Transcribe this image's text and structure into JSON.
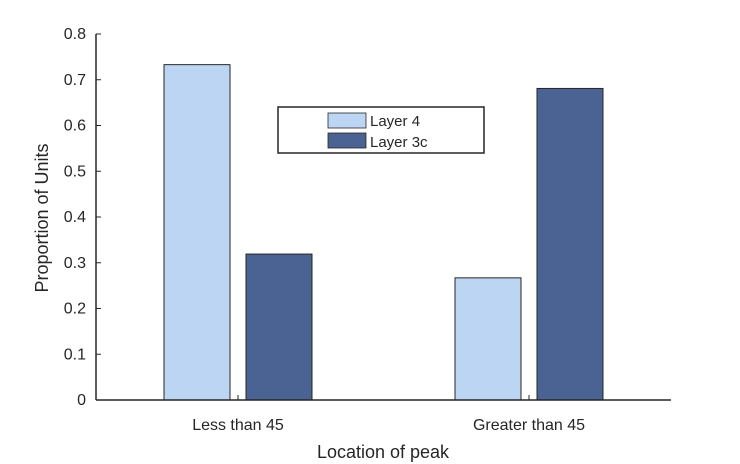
{
  "chart_data": {
    "type": "bar",
    "title": "",
    "xlabel": "Location of peak",
    "ylabel": "Proportion of Units",
    "categories": [
      "Less than 45",
      "Greater than 45"
    ],
    "series": [
      {
        "name": "Layer 4",
        "values": [
          0.733,
          0.267
        ],
        "color": "#bcd5f3"
      },
      {
        "name": "Layer 3c",
        "values": [
          0.319,
          0.681
        ],
        "color": "#4b6392"
      }
    ],
    "ylim": [
      0,
      0.8
    ],
    "yticks": [
      "0",
      "0.1",
      "0.2",
      "0.3",
      "0.4",
      "0.5",
      "0.6",
      "0.7",
      "0.8"
    ],
    "grid": false,
    "legend_position": "top-center"
  }
}
